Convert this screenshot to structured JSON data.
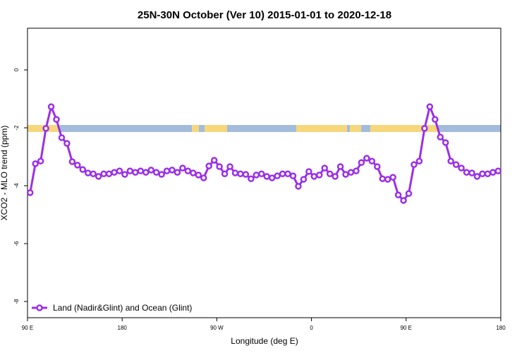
{
  "chart_data": {
    "type": "line",
    "title": "25N-30N October (Ver 10)   2015-01-01 to 2020-12-18",
    "xlabel": "Longitude (deg E)",
    "ylabel": "XCO2 - MLO trend (ppm)",
    "xlim": [
      90,
      540
    ],
    "ylim": [
      -8.56,
      1.44
    ],
    "xticks": [
      {
        "value": 90,
        "label": "90 E"
      },
      {
        "value": 180,
        "label": "180"
      },
      {
        "value": 270,
        "label": "90 W"
      },
      {
        "value": 360,
        "label": "0"
      },
      {
        "value": 450,
        "label": "90 E"
      },
      {
        "value": 540,
        "label": "180"
      }
    ],
    "yticks": [
      0,
      -2,
      -4,
      -6,
      -8
    ],
    "legend": "bottom-left",
    "x": [
      92.5,
      97.5,
      102.5,
      107.5,
      112.5,
      117.5,
      122.5,
      127.5,
      132.5,
      137.5,
      142.5,
      147.5,
      152.5,
      157.5,
      162.5,
      167.5,
      172.5,
      177.5,
      182.5,
      187.5,
      192.5,
      197.5,
      202.5,
      207.5,
      212.5,
      217.5,
      222.5,
      227.5,
      232.5,
      237.5,
      242.5,
      247.5,
      252.5,
      257.5,
      262.5,
      267.5,
      272.5,
      277.5,
      282.5,
      287.5,
      292.5,
      297.5,
      302.5,
      307.5,
      312.5,
      317.5,
      322.5,
      327.5,
      332.5,
      337.5,
      342.5,
      347.5,
      352.5,
      357.5,
      362.5,
      367.5,
      372.5,
      377.5,
      382.5,
      387.5,
      392.5,
      397.5,
      402.5,
      407.5,
      412.5,
      417.5,
      422.5,
      427.5,
      432.5,
      437.5,
      442.5,
      447.5,
      452.5,
      457.5,
      462.5,
      467.5,
      472.5,
      477.5,
      482.5,
      487.5,
      492.5,
      497.5,
      502.5,
      507.5,
      512.5,
      517.5,
      522.5,
      527.5,
      532.5,
      537.5
    ],
    "series": [
      {
        "name": "Land (Nadir&Glint) and Ocean (Glint)",
        "color": "#9b30e6",
        "values": [
          -4.24,
          -3.24,
          -3.15,
          -2.02,
          -1.27,
          -1.71,
          -2.34,
          -2.54,
          -3.17,
          -3.29,
          -3.44,
          -3.56,
          -3.59,
          -3.68,
          -3.59,
          -3.59,
          -3.54,
          -3.49,
          -3.61,
          -3.49,
          -3.54,
          -3.49,
          -3.54,
          -3.46,
          -3.54,
          -3.61,
          -3.49,
          -3.46,
          -3.54,
          -3.39,
          -3.49,
          -3.56,
          -3.63,
          -3.73,
          -3.32,
          -3.12,
          -3.34,
          -3.59,
          -3.34,
          -3.56,
          -3.59,
          -3.61,
          -3.76,
          -3.63,
          -3.59,
          -3.68,
          -3.73,
          -3.66,
          -3.59,
          -3.59,
          -3.66,
          -4.02,
          -3.78,
          -3.51,
          -3.68,
          -3.63,
          -3.39,
          -3.59,
          -3.68,
          -3.34,
          -3.61,
          -3.54,
          -3.49,
          -3.2,
          -3.05,
          -3.15,
          -3.34,
          -3.76,
          -3.78,
          -3.71,
          -4.32,
          -4.51,
          -4.27,
          -3.27,
          -3.15,
          -2.02,
          -1.27,
          -1.71,
          -2.32,
          -2.51,
          -3.15,
          -3.27,
          -3.39,
          -3.54,
          -3.56,
          -3.68,
          -3.59,
          -3.59,
          -3.54,
          -3.49
        ]
      }
    ]
  }
}
